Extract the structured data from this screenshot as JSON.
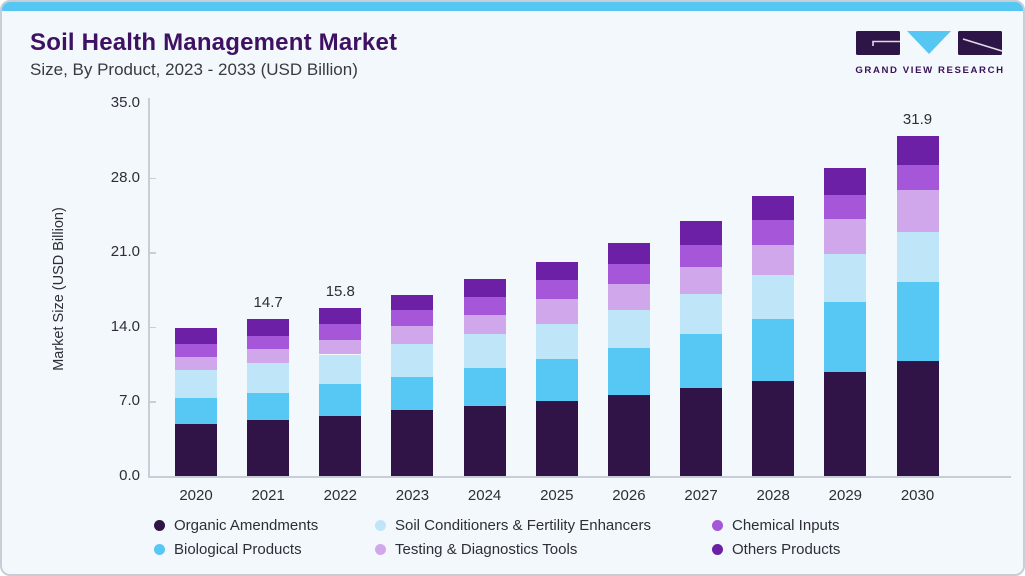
{
  "header": {
    "title": "Soil Health Management Market",
    "subtitle": "Size, By Product, 2023 - 2033 (USD Billion)",
    "logo_brand": "GRAND VIEW RESEARCH"
  },
  "colors": {
    "accent_top_bar": "#56C7F2",
    "card_background": "#F3F8FC",
    "card_border": "#C8CED6",
    "title_text": "#3F1162",
    "body_text": "#2E2E38",
    "axis_gray": "#C9CED6",
    "logo_purple": "#2E1547",
    "logo_cyan": "#56C7F2"
  },
  "chart_data": {
    "type": "bar",
    "stacked": true,
    "title": "Soil Health Management Market Size, By Product, 2023 - 2033 (USD Billion)",
    "xlabel": "",
    "ylabel": "Market Size (USD Billion)",
    "ylim": [
      0,
      35
    ],
    "yticks": [
      "0.0",
      "7.0",
      "14.0",
      "21.0",
      "28.0",
      "35.0"
    ],
    "grid": false,
    "legend_position": "bottom",
    "categories": [
      "2020",
      "2021",
      "2022",
      "2023",
      "2024",
      "2025",
      "2026",
      "2027",
      "2028",
      "2029",
      "2030"
    ],
    "series": [
      {
        "name": "Organic Amendments",
        "color": "#301447",
        "values": [
          4.9,
          5.3,
          5.6,
          6.2,
          6.6,
          7.0,
          7.6,
          8.3,
          8.9,
          9.8,
          10.8
        ]
      },
      {
        "name": "Biological Products",
        "color": "#57C7F4",
        "values": [
          2.4,
          2.5,
          3.0,
          3.1,
          3.5,
          4.0,
          4.4,
          5.0,
          5.8,
          6.5,
          7.4
        ]
      },
      {
        "name": "Soil Conditioners & Fertility Enhancers",
        "color": "#BEE5F8",
        "values": [
          2.6,
          2.8,
          2.8,
          3.1,
          3.2,
          3.3,
          3.6,
          3.8,
          4.2,
          4.5,
          4.7
        ]
      },
      {
        "name": "Testing & Diagnostics Tools",
        "color": "#D1A7EC",
        "values": [
          1.3,
          1.3,
          1.4,
          1.7,
          1.8,
          2.3,
          2.4,
          2.5,
          2.8,
          3.3,
          3.9
        ]
      },
      {
        "name": "Chemical Inputs",
        "color": "#A556D9",
        "values": [
          1.2,
          1.2,
          1.5,
          1.5,
          1.7,
          1.8,
          1.9,
          2.1,
          2.3,
          2.3,
          2.4
        ]
      },
      {
        "name": "Others Products",
        "color": "#6C20A6",
        "values": [
          1.5,
          1.6,
          1.5,
          1.4,
          1.7,
          1.7,
          2.0,
          2.2,
          2.3,
          2.5,
          2.7
        ]
      }
    ],
    "bar_total_labels": {
      "2021": "14.7",
      "2022": "15.8",
      "2030": "31.9"
    }
  },
  "legend": {
    "items": [
      {
        "label": "Organic Amendments",
        "color": "#301447"
      },
      {
        "label": "Soil Conditioners & Fertility Enhancers",
        "color": "#BEE5F8"
      },
      {
        "label": "Chemical Inputs",
        "color": "#A556D9"
      },
      {
        "label": "Biological Products",
        "color": "#57C7F4"
      },
      {
        "label": "Testing & Diagnostics Tools",
        "color": "#D1A7EC"
      },
      {
        "label": "Others Products",
        "color": "#6C20A6"
      }
    ]
  }
}
